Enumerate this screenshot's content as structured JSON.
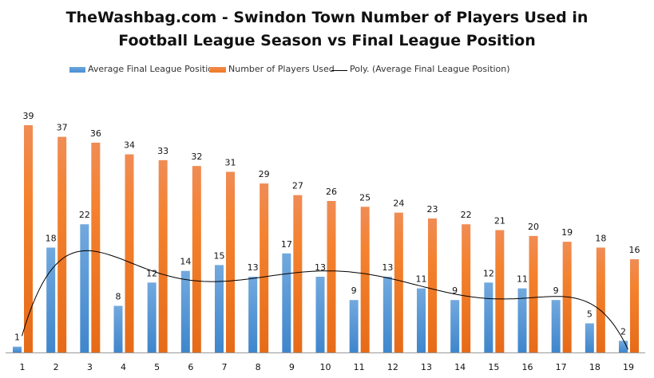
{
  "chart_data": {
    "type": "bar",
    "title": "TheWashbag.com - Swindon Town Number of Players Used in Football League Season vs Final League Position",
    "title_lines": [
      "TheWashbag.com - Swindon Town Number of Players Used in",
      "Football League Season vs Final League Position"
    ],
    "xlabel": "",
    "ylabel": "",
    "categories": [
      "1",
      "2",
      "3",
      "4",
      "5",
      "6",
      "7",
      "8",
      "9",
      "10",
      "11",
      "12",
      "13",
      "14",
      "15",
      "16",
      "17",
      "18",
      "19"
    ],
    "series": [
      {
        "name": "Average Final League Position",
        "color": "#4a8fd4",
        "values": [
          1,
          18,
          22,
          8,
          12,
          14,
          15,
          13,
          17,
          13,
          9,
          13,
          11,
          9,
          12,
          11,
          9,
          5,
          2
        ]
      },
      {
        "name": "Number of Players Used",
        "color": "#f07a22",
        "values": [
          39,
          37,
          36,
          34,
          33,
          32,
          31,
          29,
          27,
          26,
          25,
          24,
          23,
          22,
          21,
          20,
          19,
          18,
          16
        ]
      }
    ],
    "trendline": {
      "name": "Poly. (Average Final League Position)",
      "type": "polynomial",
      "of_series": "Average Final League Position",
      "color": "#000000"
    },
    "ylim": [
      0,
      39
    ],
    "grid": false,
    "data_labels": true,
    "legend_position": "top"
  }
}
